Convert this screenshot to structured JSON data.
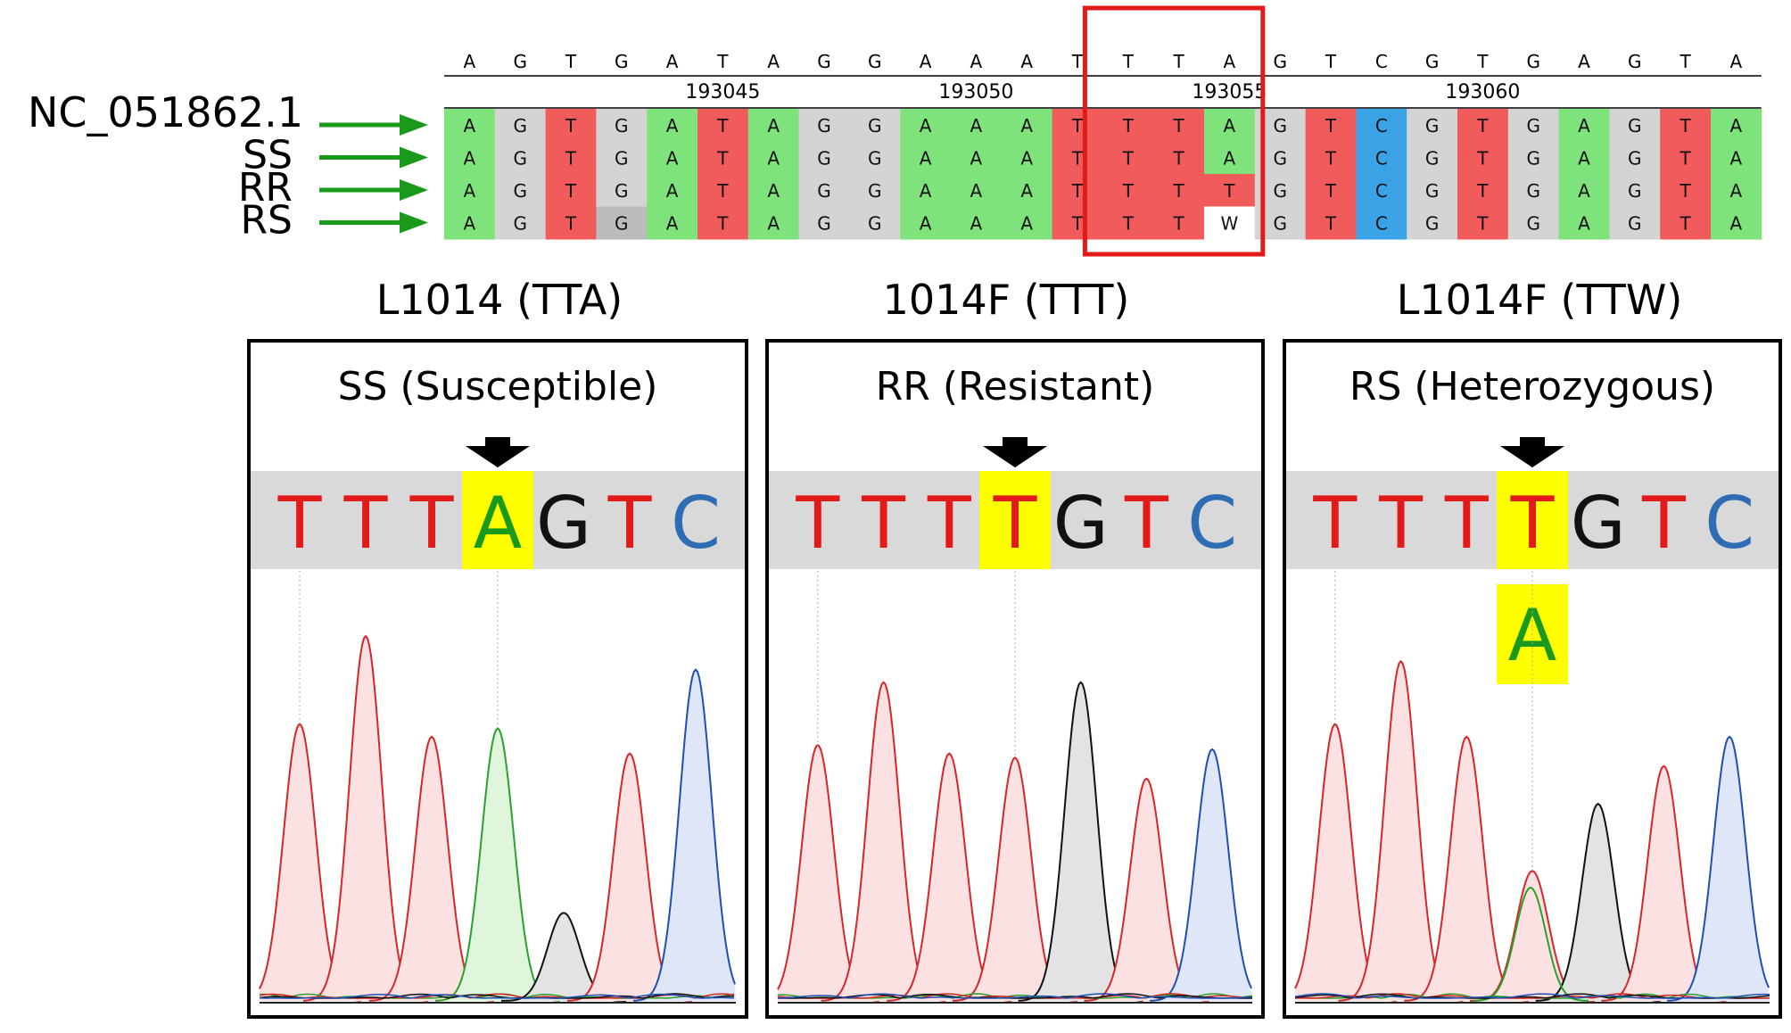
{
  "alignment": {
    "consensus": [
      "A",
      "G",
      "T",
      "G",
      "A",
      "T",
      "A",
      "G",
      "G",
      "A",
      "A",
      "A",
      "T",
      "T",
      "T",
      "A",
      "G",
      "T",
      "C",
      "G",
      "T",
      "G",
      "A",
      "G",
      "T",
      "A"
    ],
    "positions": [
      {
        "label": "193045",
        "index": 5
      },
      {
        "label": "193050",
        "index": 10
      },
      {
        "label": "193055",
        "index": 15
      },
      {
        "label": "193060",
        "index": 20
      }
    ],
    "rows": [
      {
        "name": "NC_051862.1",
        "bases": [
          "A",
          "G",
          "T",
          "G",
          "A",
          "T",
          "A",
          "G",
          "G",
          "A",
          "A",
          "A",
          "T",
          "T",
          "T",
          "A",
          "G",
          "T",
          "C",
          "G",
          "T",
          "G",
          "A",
          "G",
          "T",
          "A"
        ]
      },
      {
        "name": "SS",
        "bases": [
          "A",
          "G",
          "T",
          "G",
          "A",
          "T",
          "A",
          "G",
          "G",
          "A",
          "A",
          "A",
          "T",
          "T",
          "T",
          "A",
          "G",
          "T",
          "C",
          "G",
          "T",
          "G",
          "A",
          "G",
          "T",
          "A"
        ]
      },
      {
        "name": "RR",
        "bases": [
          "A",
          "G",
          "T",
          "G",
          "A",
          "T",
          "A",
          "G",
          "G",
          "A",
          "A",
          "A",
          "T",
          "T",
          "T",
          "T",
          "G",
          "T",
          "C",
          "G",
          "T",
          "G",
          "A",
          "G",
          "T",
          "A"
        ]
      },
      {
        "name": "RS",
        "bases": [
          "A",
          "G",
          "T",
          "G",
          "A",
          "T",
          "A",
          "G",
          "G",
          "A",
          "A",
          "A",
          "T",
          "T",
          "T",
          "W",
          "G",
          "T",
          "C",
          "G",
          "T",
          "G",
          "A",
          "G",
          "T",
          "A"
        ]
      }
    ],
    "highlight_range": [
      13,
      15
    ],
    "colors": {
      "A": "#7ee37a",
      "T": "#f25b5b",
      "C": "#3aa3e6",
      "G": "#d4d4d4",
      "W": "#ffffff",
      "box": "#e31a1a",
      "arrow": "#1a9a1a"
    }
  },
  "genotypes": [
    {
      "heading": "L1014 (TTA)",
      "panel_title": "SS (Susceptible)",
      "bases": [
        "T",
        "T",
        "T",
        "A",
        "G",
        "T",
        "C"
      ],
      "highlight_index": 3,
      "extra_call": null,
      "peaks": [
        {
          "base": "T",
          "height": 0.66
        },
        {
          "base": "T",
          "height": 0.87
        },
        {
          "base": "T",
          "height": 0.63
        },
        {
          "base": "A",
          "height": 0.65
        },
        {
          "base": "G",
          "height": 0.21
        },
        {
          "base": "T",
          "height": 0.59
        },
        {
          "base": "C",
          "height": 0.79
        }
      ]
    },
    {
      "heading": "1014F (TTT)",
      "panel_title": "RR (Resistant)",
      "bases": [
        "T",
        "T",
        "T",
        "T",
        "G",
        "T",
        "C"
      ],
      "highlight_index": 3,
      "extra_call": null,
      "peaks": [
        {
          "base": "T",
          "height": 0.61
        },
        {
          "base": "T",
          "height": 0.76
        },
        {
          "base": "T",
          "height": 0.59
        },
        {
          "base": "T",
          "height": 0.58
        },
        {
          "base": "G",
          "height": 0.76
        },
        {
          "base": "T",
          "height": 0.53
        },
        {
          "base": "C",
          "height": 0.6
        }
      ]
    },
    {
      "heading": "L1014F (TTW)",
      "panel_title": "RS (Heterozygous)",
      "bases": [
        "T",
        "T",
        "T",
        "T",
        "G",
        "T",
        "C"
      ],
      "highlight_index": 3,
      "extra_call": "A",
      "peaks": [
        {
          "base": "T",
          "height": 0.66
        },
        {
          "base": "T",
          "height": 0.81
        },
        {
          "base": "T",
          "height": 0.63
        },
        {
          "base": "T",
          "height": 0.31
        },
        {
          "base": "G",
          "height": 0.47
        },
        {
          "base": "T",
          "height": 0.56
        },
        {
          "base": "C",
          "height": 0.63
        }
      ],
      "secondary_peak": {
        "base": "A",
        "index": 3,
        "height": 0.27
      }
    }
  ],
  "trace_colors": {
    "A": "#2ca02c",
    "T": "#d62728",
    "C": "#1f4fb4",
    "G": "#111111",
    "fillA": "#dff5dc",
    "fillT": "#fbe1e1",
    "fillC": "#dfe6f7",
    "fillG": "#e3e3e3",
    "textA": "#1a9a1a",
    "textT": "#e31a1a",
    "textC": "#2e6db4",
    "textG": "#111111",
    "highlight": "#ffff00",
    "band": "#d9d9d9"
  }
}
